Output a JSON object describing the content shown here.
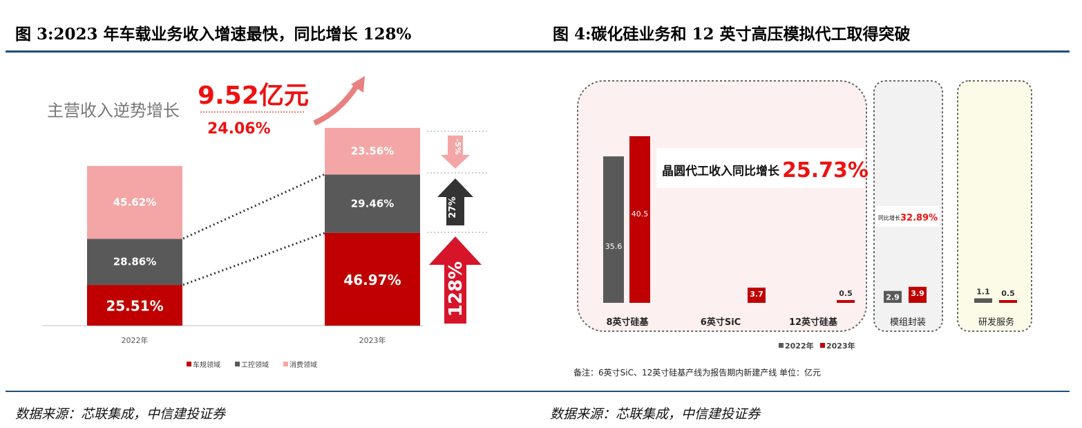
{
  "left": {
    "title": "图 3:2023 年车载业务收入增速最快，同比增长 128%",
    "source": "数据来源：芯联集成，中信建投证券",
    "headline_label": "主营收入逆势增长",
    "headline_value": "9.52亿元",
    "headline_growth": "24.06%",
    "arrow_labels": [
      "-5%",
      "27%",
      "128%"
    ]
  },
  "right": {
    "title": "图 4:碳化硅业务和 12 英寸高压模拟代工取得突破",
    "source": "数据来源：芯联集成，中信建投证券",
    "callout_main_label": "晶圆代工收入同比增长",
    "callout_main_value": "25.73%",
    "callout_module_label": "同比增长",
    "callout_module_value": "32.89%",
    "note": "备注：6英寸SiC、12英寸硅基产线为报告期内新建产线      单位：亿元"
  },
  "chart_data": [
    {
      "type": "bar",
      "stacked": true,
      "categories": [
        "2022年",
        "2023年"
      ],
      "series": [
        {
          "name": "车规领域",
          "values": [
            25.51,
            46.97
          ],
          "color": "#c00000"
        },
        {
          "name": "工控领域",
          "values": [
            28.86,
            29.46
          ],
          "color": "#595959"
        },
        {
          "name": "消费领域",
          "values": [
            45.62,
            23.56
          ],
          "color": "#f4a6a6"
        }
      ],
      "value_labels": [
        [
          "25.51%",
          "46.97%"
        ],
        [
          "28.86%",
          "29.46%"
        ],
        [
          "45.62%",
          "23.56%"
        ]
      ],
      "legend": "bottom"
    },
    {
      "type": "bar",
      "categories": [
        "8英寸硅基",
        "6英寸SiC",
        "12英寸硅基",
        "模组封装",
        "研发服务"
      ],
      "series": [
        {
          "name": "2022年",
          "values": [
            35.6,
            null,
            null,
            2.9,
            1.1
          ],
          "color": "#595959"
        },
        {
          "name": "2023年",
          "values": [
            40.5,
            3.7,
            0.5,
            3.9,
            0.5
          ],
          "color": "#c00000"
        }
      ],
      "legend": "bottom"
    }
  ]
}
